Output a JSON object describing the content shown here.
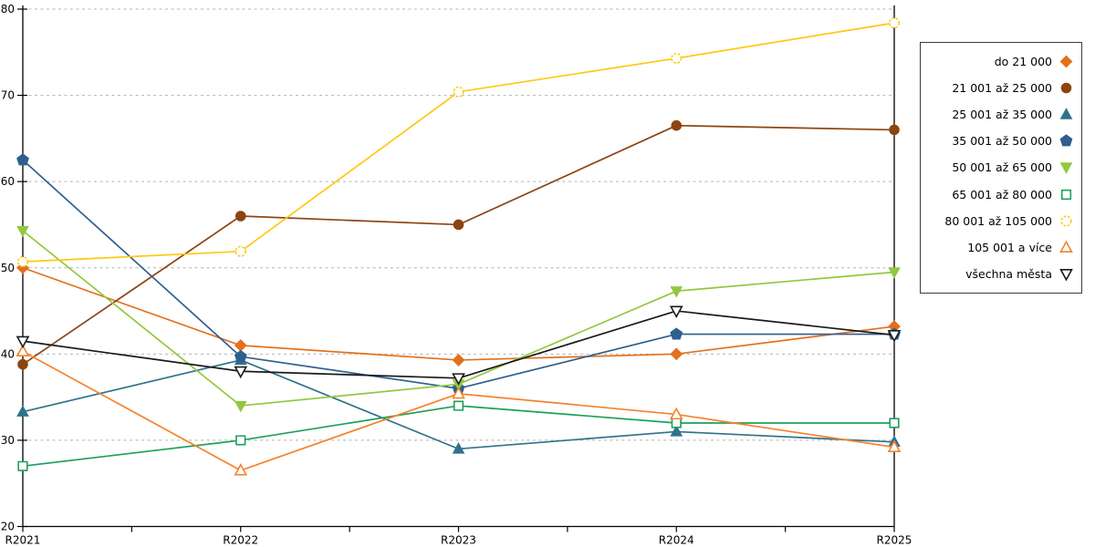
{
  "chart_data": {
    "type": "line",
    "title": "",
    "xlabel": "",
    "ylabel": "",
    "categories": [
      "R2021",
      "R2022",
      "R2023",
      "R2024",
      "R2025"
    ],
    "ylim": [
      20,
      80
    ],
    "yticks": [
      20,
      30,
      40,
      50,
      60,
      70,
      80
    ],
    "grid": "horizontal-dashed",
    "grid_color": "#b3b3b3",
    "axis_color": "#000000",
    "legend_position": "right-outside",
    "series": [
      {
        "name": "do 21 000",
        "color": "#E2711D",
        "marker": "diamond",
        "filled": true,
        "values": [
          50.0,
          41.0,
          39.3,
          40.0,
          43.2
        ]
      },
      {
        "name": "21 001 až 25 000",
        "color": "#8C4511",
        "marker": "circle",
        "filled": true,
        "values": [
          38.8,
          56.0,
          55.0,
          66.5,
          66.0
        ]
      },
      {
        "name": "25 001 až 35 000",
        "color": "#31738C",
        "marker": "triangle-up",
        "filled": true,
        "values": [
          33.3,
          39.3,
          29.0,
          31.0,
          29.8
        ]
      },
      {
        "name": "35 001 až 50 000",
        "color": "#2F5F8F",
        "marker": "pentagon",
        "filled": true,
        "values": [
          62.5,
          39.7,
          36.0,
          42.3,
          42.3
        ]
      },
      {
        "name": "50 001 až 65 000",
        "color": "#92C83E",
        "marker": "triangle-down",
        "filled": true,
        "values": [
          54.3,
          34.0,
          36.5,
          47.3,
          49.5
        ]
      },
      {
        "name": "65 001 až 80 000",
        "color": "#1CA05C",
        "marker": "square",
        "filled": false,
        "values": [
          27.0,
          30.0,
          34.0,
          32.0,
          32.0
        ]
      },
      {
        "name": "80 001 až 105 000",
        "color": "#FFC714",
        "marker": "circle",
        "filled": false,
        "dashed_marker": true,
        "values": [
          50.7,
          51.9,
          70.4,
          74.3,
          78.4
        ]
      },
      {
        "name": "105 001 a více",
        "color": "#F5822D",
        "marker": "triangle-up",
        "filled": false,
        "values": [
          40.3,
          26.5,
          35.4,
          33.0,
          29.2
        ]
      },
      {
        "name": "všechna města",
        "color": "#1A1A1A",
        "marker": "triangle-down",
        "filled": false,
        "values": [
          41.5,
          38.0,
          37.2,
          45.0,
          42.2
        ]
      }
    ]
  }
}
